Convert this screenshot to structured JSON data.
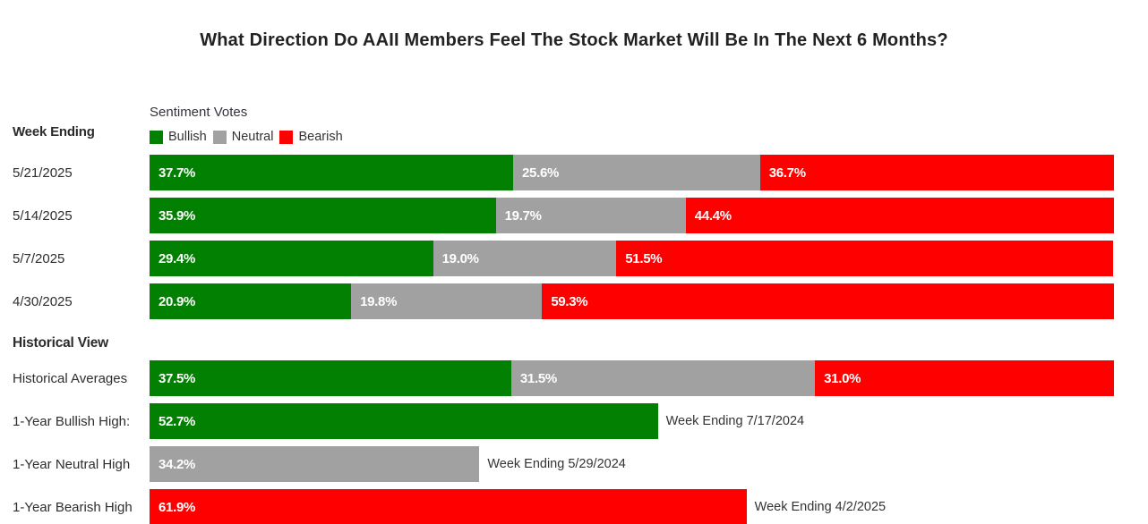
{
  "chart_data": {
    "type": "bar",
    "orientation": "horizontal",
    "stacked": true,
    "unit": "%",
    "xlim": [
      0,
      100
    ],
    "grid": false,
    "title": "What Direction Do AAII Members Feel The Stock Market Will Be In The Next 6 Months?",
    "legend": {
      "title": "Sentiment Votes",
      "position": "top-left",
      "entries": [
        "Bullish",
        "Neutral",
        "Bearish"
      ]
    },
    "colors": {
      "Bullish": "#018001",
      "Neutral": "#a1a1a1",
      "Bearish": "#fe0000"
    },
    "value_label_format": "one-decimal-percent",
    "sections": [
      {
        "header": "Week Ending",
        "rows": [
          {
            "label": "5/21/2025",
            "segments": [
              {
                "name": "Bullish",
                "value": 37.7
              },
              {
                "name": "Neutral",
                "value": 25.6
              },
              {
                "name": "Bearish",
                "value": 36.7
              }
            ]
          },
          {
            "label": "5/14/2025",
            "segments": [
              {
                "name": "Bullish",
                "value": 35.9
              },
              {
                "name": "Neutral",
                "value": 19.7
              },
              {
                "name": "Bearish",
                "value": 44.4
              }
            ]
          },
          {
            "label": "5/7/2025",
            "segments": [
              {
                "name": "Bullish",
                "value": 29.4
              },
              {
                "name": "Neutral",
                "value": 19.0
              },
              {
                "name": "Bearish",
                "value": 51.5
              }
            ]
          },
          {
            "label": "4/30/2025",
            "segments": [
              {
                "name": "Bullish",
                "value": 20.9
              },
              {
                "name": "Neutral",
                "value": 19.8
              },
              {
                "name": "Bearish",
                "value": 59.3
              }
            ]
          }
        ]
      },
      {
        "header": "Historical View",
        "rows": [
          {
            "label": "Historical Averages",
            "segments": [
              {
                "name": "Bullish",
                "value": 37.5
              },
              {
                "name": "Neutral",
                "value": 31.5
              },
              {
                "name": "Bearish",
                "value": 31.0
              }
            ]
          },
          {
            "label": "1-Year Bullish High:",
            "segments": [
              {
                "name": "Bullish",
                "value": 52.7
              }
            ],
            "annotation": "Week Ending 7/17/2024"
          },
          {
            "label": "1-Year Neutral High",
            "segments": [
              {
                "name": "Neutral",
                "value": 34.2
              }
            ],
            "annotation": "Week Ending 5/29/2024"
          },
          {
            "label": "1-Year Bearish High",
            "segments": [
              {
                "name": "Bearish",
                "value": 61.9
              }
            ],
            "annotation": "Week Ending 4/2/2025"
          }
        ]
      }
    ]
  }
}
